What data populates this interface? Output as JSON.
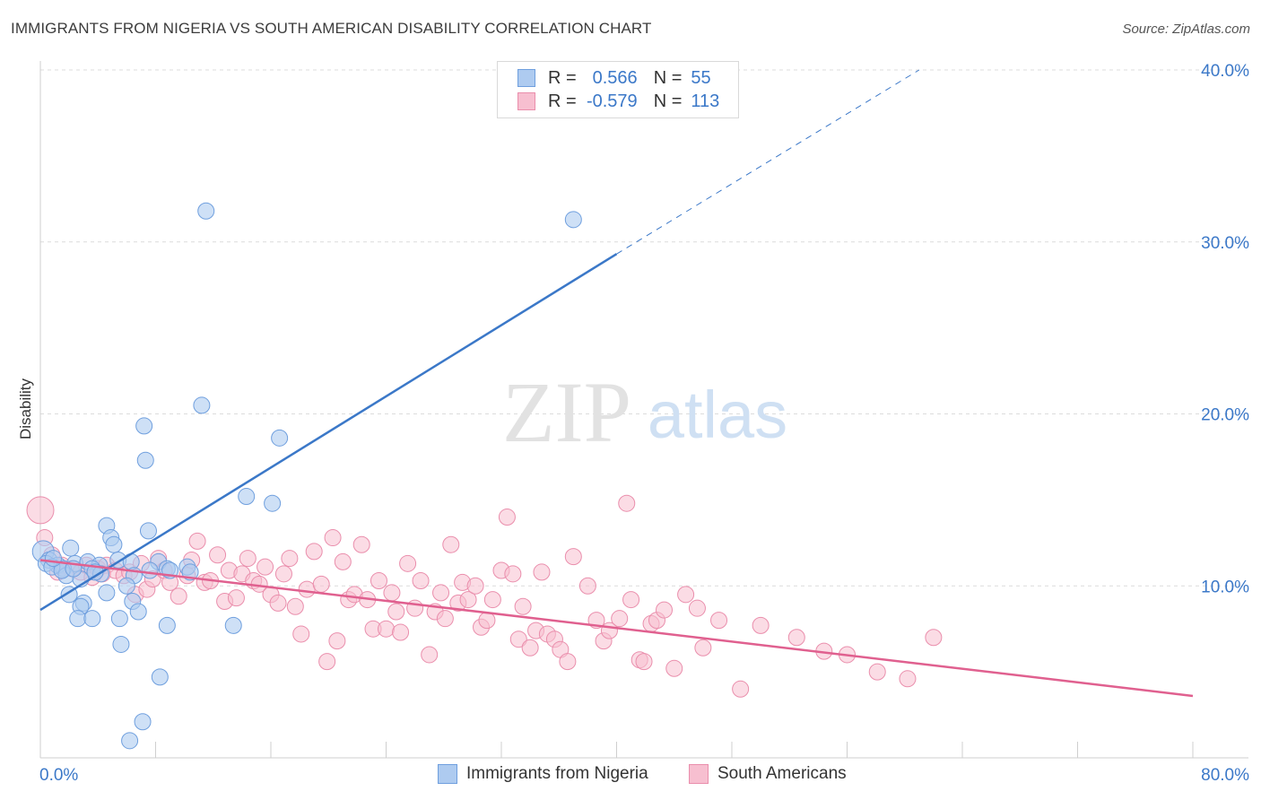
{
  "title": "IMMIGRANTS FROM NIGERIA VS SOUTH AMERICAN DISABILITY CORRELATION CHART",
  "source": "Source: ZipAtlas.com",
  "watermark": {
    "zip": "ZIP",
    "atlas": "atlas"
  },
  "legend": {
    "r_label": "R =",
    "n_label": "N =",
    "series": [
      {
        "r": "0.566",
        "n": "55",
        "value_color": "#3b78c8",
        "fill": "#aecbf0",
        "stroke": "#6f9fde"
      },
      {
        "r": "-0.579",
        "n": "113",
        "value_color": "#3b78c8",
        "fill": "#f7bfd0",
        "stroke": "#ea8eac"
      }
    ]
  },
  "bottom_legend": [
    "Immigrants from Nigeria",
    "South Americans"
  ],
  "chart_data": {
    "type": "scatter",
    "title": "IMMIGRANTS FROM NIGERIA VS SOUTH AMERICAN DISABILITY CORRELATION CHART",
    "xlabel": "",
    "ylabel": "Disability",
    "xlim": [
      0,
      80
    ],
    "ylim": [
      0,
      40
    ],
    "x_tick_labels": [
      "0.0%",
      "80.0%"
    ],
    "y_ticks": [
      10,
      20,
      30,
      40
    ],
    "y_tick_labels": [
      "10.0%",
      "20.0%",
      "30.0%",
      "40.0%"
    ],
    "grid": true,
    "legend_position": "top-center",
    "series": [
      {
        "name": "Immigrants from Nigeria",
        "color": "#3b78c8",
        "r": 0.566,
        "n": 55,
        "trend": {
          "x0": 0,
          "y0": 8.6,
          "x1": 40,
          "y1": 29.3,
          "dash_x1": 61,
          "dash_y1": 40
        },
        "points": [
          [
            11.5,
            31.8
          ],
          [
            37.0,
            31.3
          ],
          [
            11.2,
            20.5
          ],
          [
            7.2,
            19.3
          ],
          [
            16.6,
            18.6
          ],
          [
            7.3,
            17.3
          ],
          [
            14.3,
            15.2
          ],
          [
            16.1,
            14.8
          ],
          [
            4.6,
            13.5
          ],
          [
            7.5,
            13.2
          ],
          [
            4.9,
            12.8
          ],
          [
            5.1,
            12.4
          ],
          [
            0.2,
            12.0
          ],
          [
            2.1,
            12.2
          ],
          [
            0.6,
            11.5
          ],
          [
            1.2,
            11.2
          ],
          [
            0.4,
            11.3
          ],
          [
            2.4,
            11.3
          ],
          [
            1.6,
            11.0
          ],
          [
            3.3,
            11.4
          ],
          [
            4.1,
            11.2
          ],
          [
            5.4,
            11.5
          ],
          [
            6.3,
            11.4
          ],
          [
            8.2,
            11.4
          ],
          [
            3.6,
            11.0
          ],
          [
            0.8,
            11.1
          ],
          [
            1.8,
            10.6
          ],
          [
            2.8,
            10.4
          ],
          [
            4.2,
            10.7
          ],
          [
            6.5,
            10.6
          ],
          [
            8.8,
            11.0
          ],
          [
            10.2,
            11.1
          ],
          [
            9.0,
            10.9
          ],
          [
            10.4,
            10.8
          ],
          [
            2.0,
            9.5
          ],
          [
            3.0,
            9.0
          ],
          [
            4.6,
            9.6
          ],
          [
            6.0,
            10.0
          ],
          [
            6.4,
            9.1
          ],
          [
            2.8,
            8.8
          ],
          [
            6.8,
            8.5
          ],
          [
            2.6,
            8.1
          ],
          [
            3.6,
            8.1
          ],
          [
            5.5,
            8.1
          ],
          [
            8.8,
            7.7
          ],
          [
            13.4,
            7.7
          ],
          [
            5.6,
            6.6
          ],
          [
            8.3,
            4.7
          ],
          [
            7.1,
            2.1
          ],
          [
            6.2,
            1.0
          ],
          [
            1.5,
            10.9
          ],
          [
            2.3,
            11.0
          ],
          [
            3.8,
            10.8
          ],
          [
            7.6,
            10.9
          ],
          [
            0.9,
            11.6
          ]
        ]
      },
      {
        "name": "South Americans",
        "color": "#e0608f",
        "r": -0.579,
        "n": 113,
        "trend": {
          "x0": 0,
          "y0": 11.5,
          "x1": 80,
          "y1": 3.6
        },
        "points": [
          [
            0.0,
            14.4
          ],
          [
            0.3,
            12.8
          ],
          [
            0.8,
            11.8
          ],
          [
            1.5,
            11.2
          ],
          [
            2.2,
            11.0
          ],
          [
            2.8,
            10.8
          ],
          [
            3.2,
            11.2
          ],
          [
            3.6,
            10.5
          ],
          [
            4.0,
            11.0
          ],
          [
            4.6,
            11.2
          ],
          [
            5.2,
            10.9
          ],
          [
            5.8,
            10.6
          ],
          [
            6.2,
            10.8
          ],
          [
            6.6,
            9.5
          ],
          [
            7.0,
            11.3
          ],
          [
            7.4,
            9.8
          ],
          [
            7.8,
            10.4
          ],
          [
            8.2,
            11.6
          ],
          [
            8.6,
            10.9
          ],
          [
            9.0,
            10.2
          ],
          [
            9.6,
            9.4
          ],
          [
            10.2,
            10.6
          ],
          [
            10.5,
            11.5
          ],
          [
            10.9,
            12.6
          ],
          [
            11.4,
            10.2
          ],
          [
            11.8,
            10.3
          ],
          [
            12.3,
            11.8
          ],
          [
            12.8,
            9.1
          ],
          [
            13.1,
            10.9
          ],
          [
            13.6,
            9.3
          ],
          [
            14.0,
            10.7
          ],
          [
            14.4,
            11.6
          ],
          [
            14.8,
            10.3
          ],
          [
            15.2,
            10.1
          ],
          [
            15.6,
            11.1
          ],
          [
            16.0,
            9.5
          ],
          [
            16.5,
            9.0
          ],
          [
            16.9,
            10.7
          ],
          [
            17.3,
            11.6
          ],
          [
            17.7,
            8.8
          ],
          [
            18.1,
            7.2
          ],
          [
            18.5,
            9.8
          ],
          [
            19.0,
            12.0
          ],
          [
            19.5,
            10.1
          ],
          [
            19.9,
            5.6
          ],
          [
            20.3,
            12.8
          ],
          [
            20.6,
            6.8
          ],
          [
            21.0,
            11.4
          ],
          [
            21.4,
            9.2
          ],
          [
            21.8,
            9.5
          ],
          [
            22.3,
            12.4
          ],
          [
            22.7,
            9.2
          ],
          [
            23.1,
            7.5
          ],
          [
            23.5,
            10.3
          ],
          [
            24.0,
            7.5
          ],
          [
            24.4,
            9.6
          ],
          [
            24.7,
            8.5
          ],
          [
            25.0,
            7.3
          ],
          [
            25.5,
            11.3
          ],
          [
            26.0,
            8.7
          ],
          [
            26.4,
            10.3
          ],
          [
            27.0,
            6.0
          ],
          [
            27.4,
            8.5
          ],
          [
            27.8,
            9.6
          ],
          [
            28.1,
            8.1
          ],
          [
            28.5,
            12.4
          ],
          [
            29.0,
            9.0
          ],
          [
            29.3,
            10.2
          ],
          [
            29.7,
            9.2
          ],
          [
            30.2,
            10.0
          ],
          [
            30.6,
            7.6
          ],
          [
            31.0,
            8.0
          ],
          [
            31.4,
            9.2
          ],
          [
            32.0,
            10.9
          ],
          [
            32.4,
            14.0
          ],
          [
            32.8,
            10.7
          ],
          [
            33.2,
            6.9
          ],
          [
            33.5,
            8.8
          ],
          [
            34.0,
            6.4
          ],
          [
            34.4,
            7.4
          ],
          [
            34.8,
            10.8
          ],
          [
            35.2,
            7.2
          ],
          [
            35.7,
            6.9
          ],
          [
            36.1,
            6.3
          ],
          [
            36.6,
            5.6
          ],
          [
            37.0,
            11.7
          ],
          [
            38.0,
            10.0
          ],
          [
            38.6,
            8.0
          ],
          [
            39.1,
            6.8
          ],
          [
            39.5,
            7.4
          ],
          [
            40.2,
            8.1
          ],
          [
            40.7,
            14.8
          ],
          [
            41.0,
            9.2
          ],
          [
            41.6,
            5.7
          ],
          [
            41.9,
            5.6
          ],
          [
            42.4,
            7.8
          ],
          [
            42.8,
            8.0
          ],
          [
            43.3,
            8.6
          ],
          [
            44.0,
            5.2
          ],
          [
            44.8,
            9.5
          ],
          [
            45.6,
            8.7
          ],
          [
            46.0,
            6.4
          ],
          [
            47.1,
            8.0
          ],
          [
            48.6,
            4.0
          ],
          [
            50.0,
            7.7
          ],
          [
            52.5,
            7.0
          ],
          [
            54.4,
            6.2
          ],
          [
            56.0,
            6.0
          ],
          [
            58.1,
            5.0
          ],
          [
            60.2,
            4.6
          ],
          [
            62.0,
            7.0
          ],
          [
            1.2,
            10.8
          ],
          [
            4.3,
            10.7
          ]
        ]
      }
    ]
  }
}
